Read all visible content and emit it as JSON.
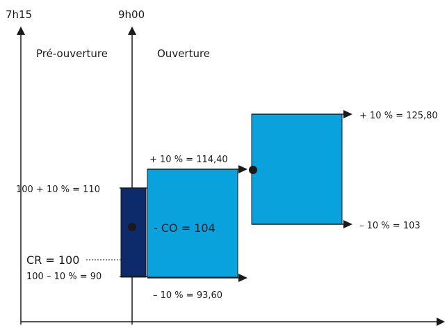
{
  "axes": {
    "left_time": "7h15",
    "mid_time": "9h00"
  },
  "phases": {
    "pre_opening": "Pré-ouverture",
    "opening": "Ouverture"
  },
  "labels": {
    "upper_110": "100 + 10 % = 110",
    "reference": "CR = 100",
    "lower_90": "100 – 10 % = 90",
    "upper_114": "+ 10 % = 114,40",
    "opening_price": "- CO = 104",
    "lower_93": "– 10 % = 93,60",
    "upper_125": "+ 10 % = 125,80",
    "lower_103": "– 10 % = 103"
  },
  "colors": {
    "dark_band": "#0d2b6b",
    "light_band": "#0aa2dc",
    "line": "#1a1a1a"
  }
}
